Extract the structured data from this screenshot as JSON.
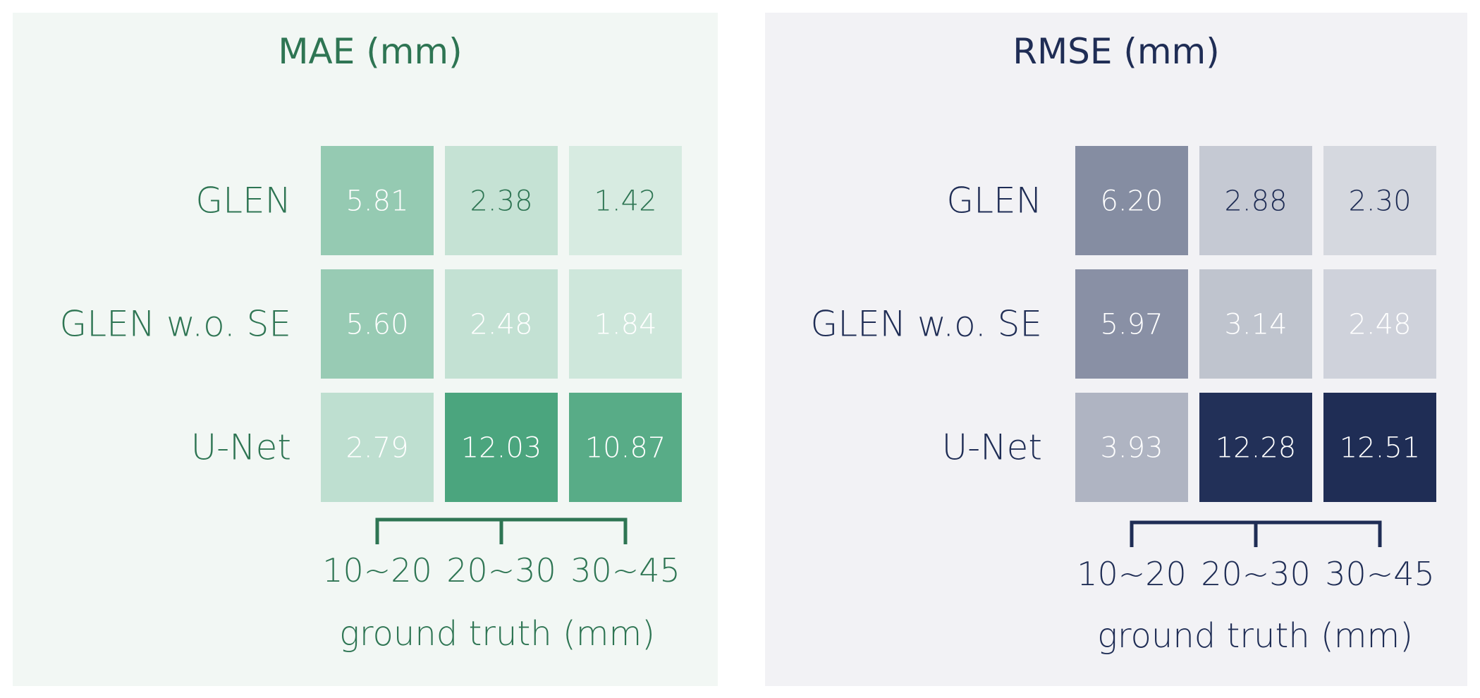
{
  "chart_data": [
    {
      "type": "heatmap",
      "title": "MAE (mm)",
      "rows": [
        "GLEN",
        "GLEN w.o. SE",
        "U-Net"
      ],
      "categories": [
        "10~20",
        "20~30",
        "30~45"
      ],
      "xlabel": "ground truth (mm)",
      "values": [
        [
          5.81,
          2.38,
          1.42
        ],
        [
          5.6,
          2.48,
          1.84
        ],
        [
          2.79,
          12.03,
          10.87
        ]
      ],
      "value_labels": [
        [
          "5.81",
          "2.38",
          "1.42"
        ],
        [
          "5.60",
          "2.48",
          "1.84"
        ],
        [
          "2.79",
          "12.03",
          "10.87"
        ]
      ],
      "colors": {
        "panel_bg": "#f2f7f4",
        "text": "#2e7553",
        "cell_dark": "#4ba57e",
        "cell_light": "#d7ebe1",
        "cell_text_light": "#ffffff"
      }
    },
    {
      "type": "heatmap",
      "title": "RMSE (mm)",
      "rows": [
        "GLEN",
        "GLEN w.o. SE",
        "U-Net"
      ],
      "categories": [
        "10~20",
        "20~30",
        "30~45"
      ],
      "xlabel": "ground truth (mm)",
      "values": [
        [
          6.2,
          2.88,
          2.3
        ],
        [
          5.97,
          3.14,
          2.48
        ],
        [
          3.93,
          12.28,
          12.51
        ]
      ],
      "value_labels": [
        [
          "6.20",
          "2.88",
          "2.30"
        ],
        [
          "5.97",
          "3.14",
          "2.48"
        ],
        [
          "3.93",
          "12.28",
          "12.51"
        ]
      ],
      "colors": {
        "panel_bg": "#f2f2f5",
        "text": "#1f2d55",
        "cell_dark": "#1f2d55",
        "cell_light": "#d5d8df",
        "cell_text_light": "#ffffff"
      }
    }
  ]
}
